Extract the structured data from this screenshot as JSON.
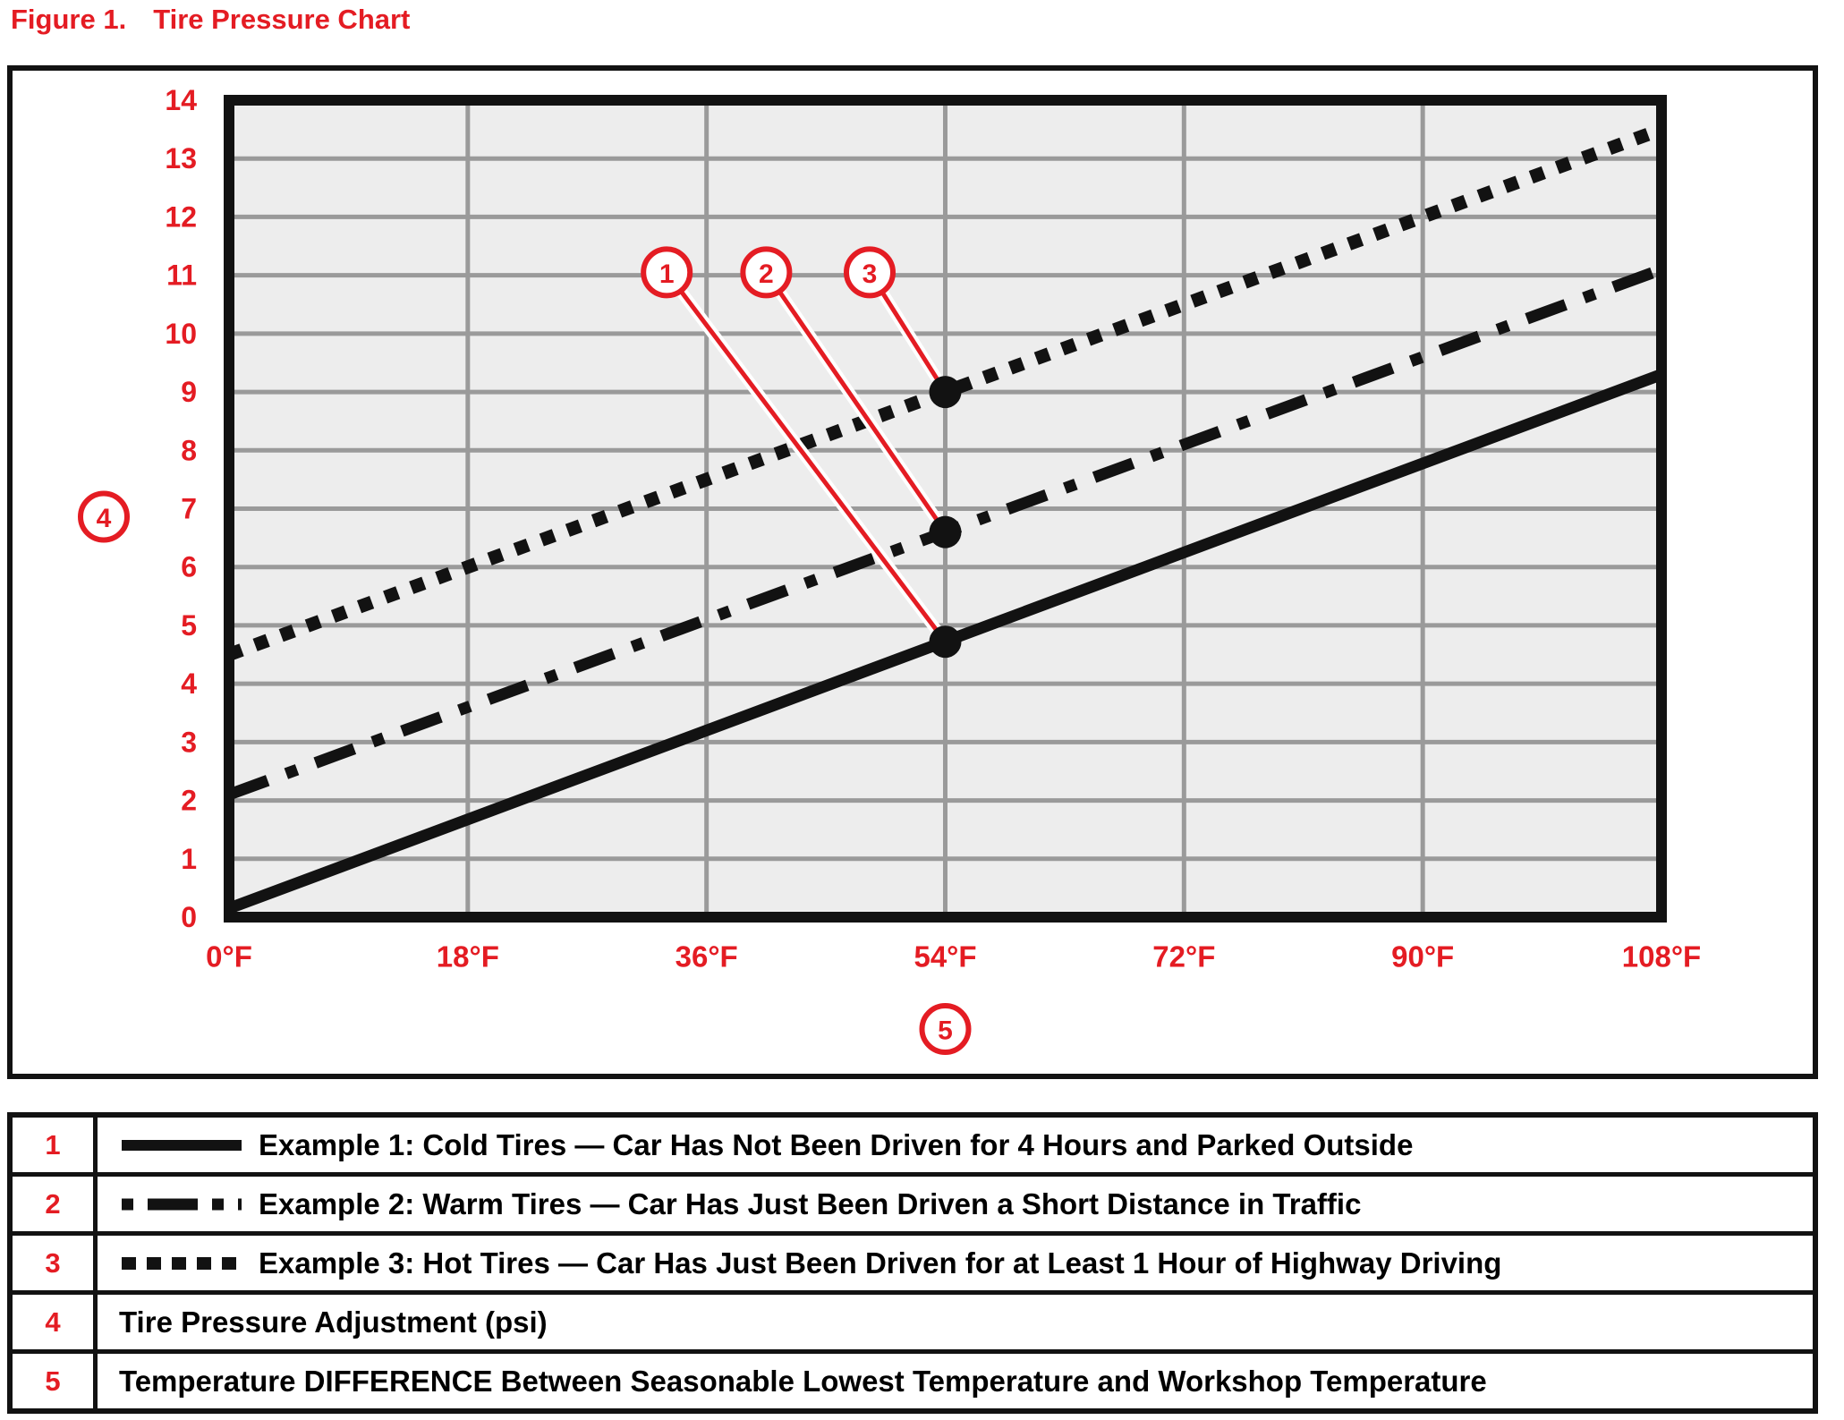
{
  "title": {
    "figure_label": "Figure 1.",
    "text": "Tire Pressure Chart"
  },
  "colors": {
    "red": "#e41c23",
    "black": "#121212",
    "grid": "#9a9a9a",
    "plot_bg": "#ededed",
    "white": "#ffffff"
  },
  "chart_data": {
    "type": "line",
    "title": "Tire Pressure Chart",
    "grid": true,
    "legend_position": "bottom-table",
    "x_axis": {
      "range": [
        0,
        108
      ],
      "tick_values": [
        0,
        18,
        36,
        54,
        72,
        90,
        108
      ],
      "tick_labels": [
        "0°F",
        "18°F",
        "36°F",
        "54°F",
        "72°F",
        "90°F",
        "108°F"
      ],
      "callout": "5",
      "title": "Temperature DIFFERENCE Between Seasonable Lowest Temperature and Workshop Temperature"
    },
    "y_axis": {
      "range": [
        0,
        14
      ],
      "tick_step": 1,
      "callout": "4",
      "title": "Tire Pressure Adjustment (psi)"
    },
    "series": [
      {
        "callout": "1",
        "name": "Example 1: Cold Tires",
        "style": "solid",
        "endpoints": [
          [
            0,
            0.15
          ],
          [
            108,
            9.3
          ]
        ],
        "marker": [
          54,
          4.72
        ]
      },
      {
        "callout": "2",
        "name": "Example 2: Warm Tires",
        "style": "dash-dot",
        "endpoints": [
          [
            0,
            2.1
          ],
          [
            108,
            11.1
          ]
        ],
        "marker": [
          54,
          6.6
        ]
      },
      {
        "callout": "3",
        "name": "Example 3: Hot Tires",
        "style": "dotted",
        "endpoints": [
          [
            0,
            4.5
          ],
          [
            108,
            13.5
          ]
        ],
        "marker": [
          54,
          9.0
        ]
      }
    ],
    "callout_positions": [
      [
        33.0,
        11.05
      ],
      [
        40.5,
        11.05
      ],
      [
        48.3,
        11.05
      ]
    ]
  },
  "legend": {
    "rows": [
      {
        "num": "1",
        "swatch": "solid",
        "label": "Example 1: Cold Tires — Car Has Not Been Driven for 4 Hours and Parked Outside"
      },
      {
        "num": "2",
        "swatch": "dash-dot",
        "label": "Example 2: Warm Tires — Car Has Just Been Driven a Short Distance in Traffic"
      },
      {
        "num": "3",
        "swatch": "dotted",
        "label": "Example 3: Hot Tires — Car Has Just Been Driven for at Least 1 Hour of Highway Driving"
      },
      {
        "num": "4",
        "swatch": "none",
        "label": "Tire Pressure Adjustment (psi)"
      },
      {
        "num": "5",
        "swatch": "none",
        "label": "Temperature DIFFERENCE Between Seasonable Lowest Temperature and Workshop Temperature"
      }
    ]
  }
}
